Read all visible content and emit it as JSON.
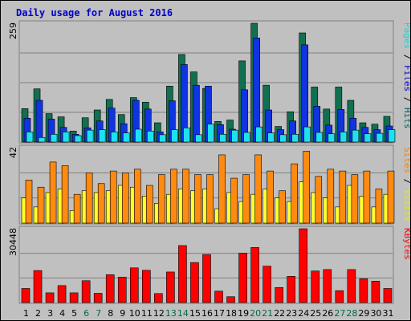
{
  "chart_data": {
    "type": "bar",
    "title": "Daily usage for August 2016",
    "categories": [
      "1",
      "2",
      "3",
      "4",
      "5",
      "6",
      "7",
      "8",
      "9",
      "10",
      "11",
      "12",
      "13",
      "14",
      "15",
      "16",
      "17",
      "18",
      "19",
      "20",
      "21",
      "22",
      "23",
      "24",
      "25",
      "26",
      "27",
      "28",
      "29",
      "30",
      "31"
    ],
    "weekend_days": [
      "6",
      "7",
      "13",
      "14",
      "20",
      "21",
      "27",
      "28"
    ],
    "panels": [
      {
        "max_label": "259",
        "legend": [
          {
            "label": "Pages",
            "color": "#00e0e0"
          },
          {
            "label": "Files",
            "color": "#0000cc"
          },
          {
            "label": "Hits",
            "color": "#006060"
          }
        ],
        "series": [
          {
            "name": "Hits",
            "color": "#107050",
            "values": [
              73,
              116,
              62,
              55,
              24,
              53,
              70,
              93,
              60,
              97,
              87,
              42,
              122,
              191,
              153,
              117,
              45,
              48,
              177,
              259,
              124,
              34,
              66,
              238,
              120,
              72,
              120,
              91,
              42,
              39,
              56
            ]
          },
          {
            "name": "Files",
            "color": "#1034e0",
            "values": [
              52,
              91,
              50,
              32,
              17,
              31,
              46,
              74,
              40,
              91,
              72,
              22,
              90,
              169,
              124,
              122,
              38,
              28,
              114,
              227,
              70,
              27,
              46,
              212,
              78,
              37,
              71,
              52,
              32,
              27,
              35
            ]
          },
          {
            "name": "Pages",
            "color": "#20e0f0",
            "values": [
              22,
              10,
              17,
              22,
              14,
              26,
              27,
              22,
              20,
              28,
              24,
              16,
              27,
              31,
              16,
              39,
              17,
              26,
              21,
              33,
              20,
              16,
              17,
              33,
              21,
              18,
              22,
              26,
              18,
              19,
              27
            ]
          }
        ],
        "ymax": 259
      },
      {
        "max_label": "42",
        "legend": [
          {
            "label": "Sites",
            "color": "#ff8000"
          },
          {
            "label": "/",
            "color": "#000000"
          },
          {
            "label": "Visits",
            "color": "#e8e800"
          }
        ],
        "series": [
          {
            "name": "Visits",
            "color": "#ffff30",
            "values": [
              14,
              9,
              17,
              19,
              7,
              18,
              17,
              18,
              21,
              20,
              15,
              11,
              16,
              19,
              18,
              19,
              8,
              17,
              12,
              16,
              19,
              14,
              12,
              23,
              17,
              14,
              9,
              21,
              15,
              9,
              16
            ]
          },
          {
            "name": "Sites",
            "color": "#ff8a10",
            "values": [
              24,
              20,
              34,
              32,
              16,
              28,
              22,
              29,
              28,
              30,
              21,
              27,
              30,
              30,
              27,
              27,
              38,
              25,
              27,
              38,
              29,
              18,
              33,
              40,
              26,
              30,
              29,
              27,
              29,
              19,
              29
            ]
          }
        ],
        "ymax": 42
      },
      {
        "max_label": "30448",
        "legend": [
          {
            "label": "KBytes",
            "color": "#ff0000"
          }
        ],
        "series": [
          {
            "name": "KBytes",
            "color": "#ff0000",
            "values": [
              5800,
              13200,
              4000,
              7000,
              4000,
              9000,
              3800,
              11500,
              10500,
              14300,
              13300,
              3700,
              12600,
              23500,
              16500,
              19800,
              4700,
              2400,
              20400,
              22700,
              15000,
              6200,
              10800,
              30448,
              13000,
              13600,
              4900,
              13600,
              9800,
              8800,
              5800
            ]
          }
        ],
        "ymax": 30448
      }
    ],
    "weekday_label_color": "#000000",
    "weekend_label_color": "#006a4e"
  }
}
